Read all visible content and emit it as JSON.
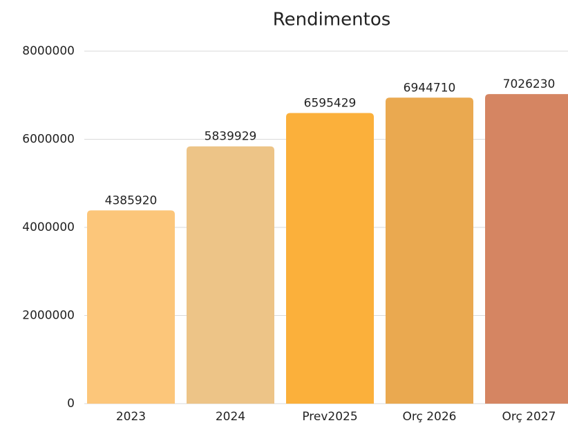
{
  "chart_data": {
    "type": "bar",
    "title": "Rendimentos",
    "categories": [
      "2023",
      "2024",
      "Prev2025",
      "Orç 2026",
      "Orç 2027"
    ],
    "values": [
      4385920,
      5839929,
      6595429,
      6944710,
      7026230
    ],
    "colors": [
      "#fcc67a",
      "#edc487",
      "#fbb03b",
      "#eaa950",
      "#d58562"
    ],
    "ylim": [
      0,
      8000000
    ],
    "yticks": [
      0,
      2000000,
      4000000,
      6000000,
      8000000
    ],
    "grid": true
  }
}
